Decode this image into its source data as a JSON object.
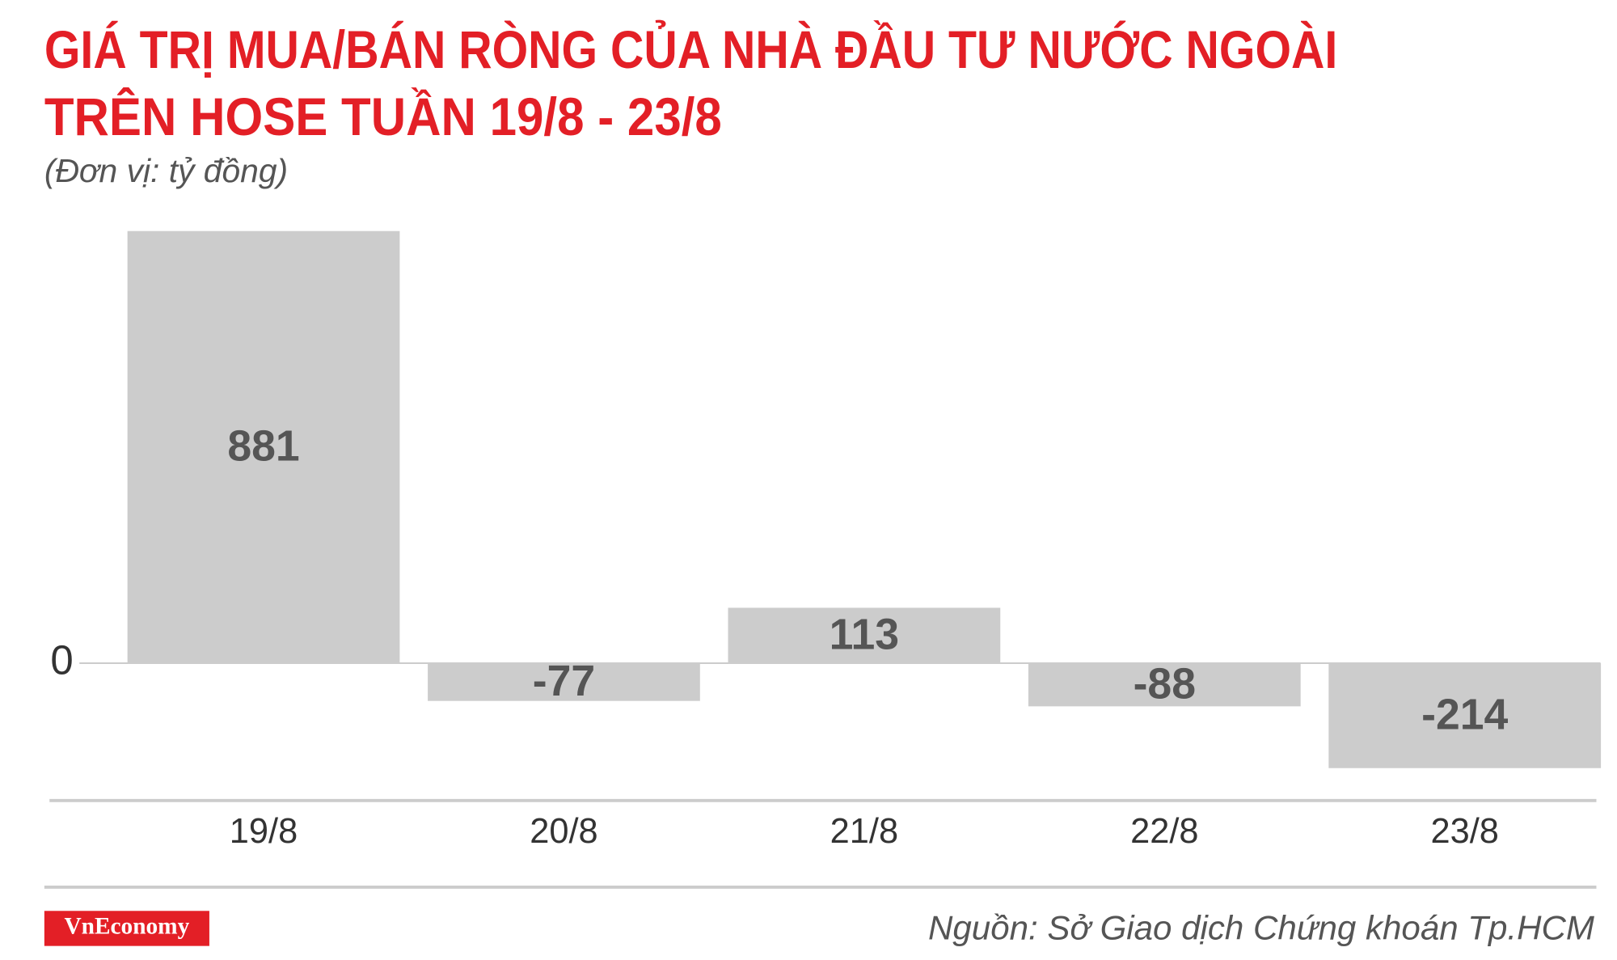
{
  "chart_data": {
    "type": "bar",
    "title": [
      "GIÁ TRỊ MUA/BÁN RÒNG CỦA NHÀ ĐẦU TƯ NƯỚC NGOÀI",
      "TRÊN HOSE TUẦN 19/8 - 23/8"
    ],
    "subtitle": "(Đơn vị: tỷ đồng)",
    "categories": [
      "19/8",
      "20/8",
      "21/8",
      "22/8",
      "23/8"
    ],
    "values": [
      881,
      -77,
      113,
      -88,
      -214
    ],
    "color": "#cccccc",
    "ylim": [
      -280,
      881
    ],
    "yticks": [
      0
    ]
  },
  "footer": {
    "logo": "VnEconomy",
    "source": "Nguồn: Sở Giao dịch Chứng khoán Tp.HCM"
  }
}
